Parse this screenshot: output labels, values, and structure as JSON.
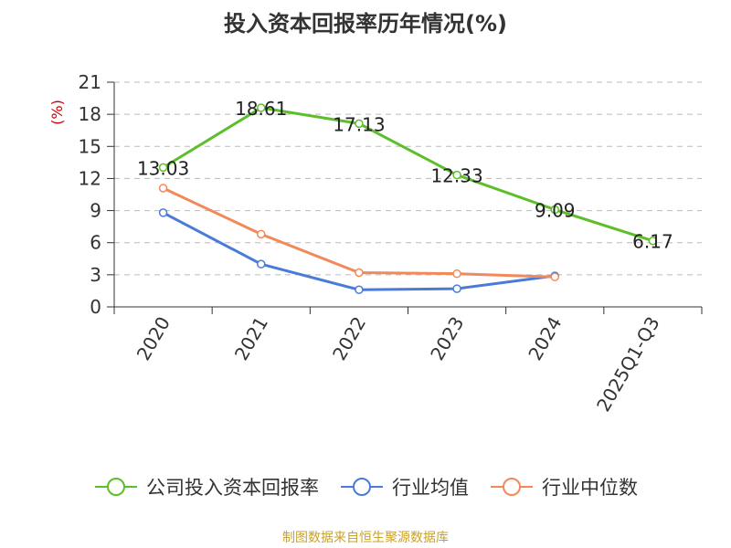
{
  "chart_data": {
    "type": "line",
    "title": "投入资本回报率历年情况(%)",
    "ylabel": "(%)",
    "xlabel": "",
    "categories": [
      "2020",
      "2021",
      "2022",
      "2023",
      "2024",
      "2025Q1-Q3"
    ],
    "ylim": [
      0,
      21
    ],
    "yticks": [
      0,
      3,
      6,
      9,
      12,
      15,
      18,
      21
    ],
    "grid": true,
    "legend_position": "bottom",
    "series": [
      {
        "name": "公司投入资本回报率",
        "color": "#5cbf2a",
        "values": [
          13.03,
          18.61,
          17.13,
          12.33,
          9.09,
          6.17
        ],
        "labels": [
          "13.03",
          "18.61",
          "17.13",
          "12.33",
          "9.09",
          "6.17"
        ]
      },
      {
        "name": "行业均值",
        "color": "#4a7bd9",
        "values": [
          8.8,
          4.0,
          1.6,
          1.7,
          2.9,
          null
        ]
      },
      {
        "name": "行业中位数",
        "color": "#f2895a",
        "values": [
          11.1,
          6.8,
          3.2,
          3.1,
          2.8,
          null
        ]
      }
    ]
  },
  "footer": {
    "source": "制图数据来自恒生聚源数据库"
  }
}
